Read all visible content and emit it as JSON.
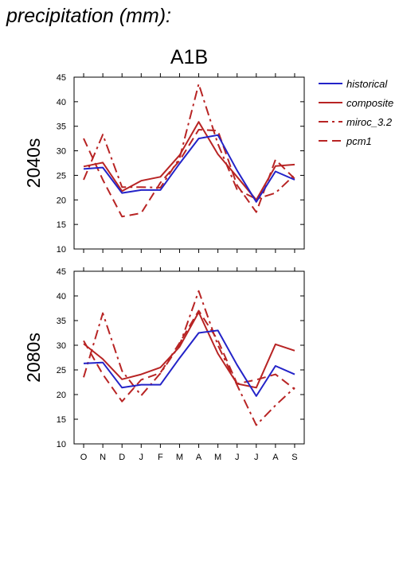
{
  "page_title": "precipitation (mm):",
  "colors": {
    "historical": "#2323c8",
    "projection": "#b82424",
    "axis": "#000000"
  },
  "chart_data": {
    "type": "line",
    "scenario": "A1B",
    "categories": [
      "O",
      "N",
      "D",
      "J",
      "F",
      "M",
      "A",
      "M",
      "J",
      "J",
      "A",
      "S"
    ],
    "ylim": [
      10,
      45
    ],
    "yticks": [
      10,
      15,
      20,
      25,
      30,
      35,
      40,
      45
    ],
    "grid": false,
    "legend_position": "right",
    "legend": [
      {
        "name": "historical",
        "color": "#2323c8",
        "dash": "solid"
      },
      {
        "name": "composite",
        "color": "#b82424",
        "dash": "solid"
      },
      {
        "name": "miroc_3.2",
        "color": "#b82424",
        "dash": "dashdot"
      },
      {
        "name": "pcm1",
        "color": "#b82424",
        "dash": "dashed"
      }
    ],
    "panels": [
      {
        "row_label": "2040s",
        "series": [
          {
            "name": "historical",
            "values": [
              26.3,
              26.6,
              21.4,
              22.0,
              22.0,
              27.4,
              32.5,
              33.2,
              26.0,
              19.6,
              25.8,
              24.1
            ]
          },
          {
            "name": "composite",
            "values": [
              26.8,
              27.6,
              21.8,
              23.9,
              24.7,
              29.1,
              35.9,
              29.3,
              24.7,
              20.0,
              26.9,
              27.2
            ]
          },
          {
            "name": "miroc_3.2",
            "values": [
              24.1,
              33.3,
              22.6,
              22.6,
              22.5,
              28.5,
              43.6,
              31.4,
              22.1,
              20.2,
              21.4,
              25.1
            ]
          },
          {
            "name": "pcm1",
            "values": [
              32.5,
              24.1,
              16.6,
              17.3,
              23.5,
              28.0,
              34.3,
              34.1,
              23.0,
              17.5,
              28.2,
              24.3
            ]
          }
        ]
      },
      {
        "row_label": "2080s",
        "series": [
          {
            "name": "historical",
            "values": [
              26.3,
              26.5,
              21.4,
              22.0,
              22.0,
              27.4,
              32.5,
              33.0,
              26.0,
              19.7,
              25.8,
              24.1
            ]
          },
          {
            "name": "composite",
            "values": [
              30.3,
              27.2,
              23.1,
              24.1,
              25.5,
              29.7,
              36.7,
              28.3,
              22.2,
              21.4,
              30.2,
              28.9
            ]
          },
          {
            "name": "miroc_3.2",
            "values": [
              23.5,
              36.5,
              24.8,
              19.8,
              24.3,
              30.0,
              41.0,
              30.0,
              21.9,
              13.8,
              17.8,
              21.4
            ]
          },
          {
            "name": "pcm1",
            "values": [
              30.9,
              24.1,
              18.6,
              23.0,
              24.4,
              30.5,
              37.0,
              31.0,
              22.2,
              23.0,
              24.1,
              21.1
            ]
          }
        ]
      }
    ]
  }
}
